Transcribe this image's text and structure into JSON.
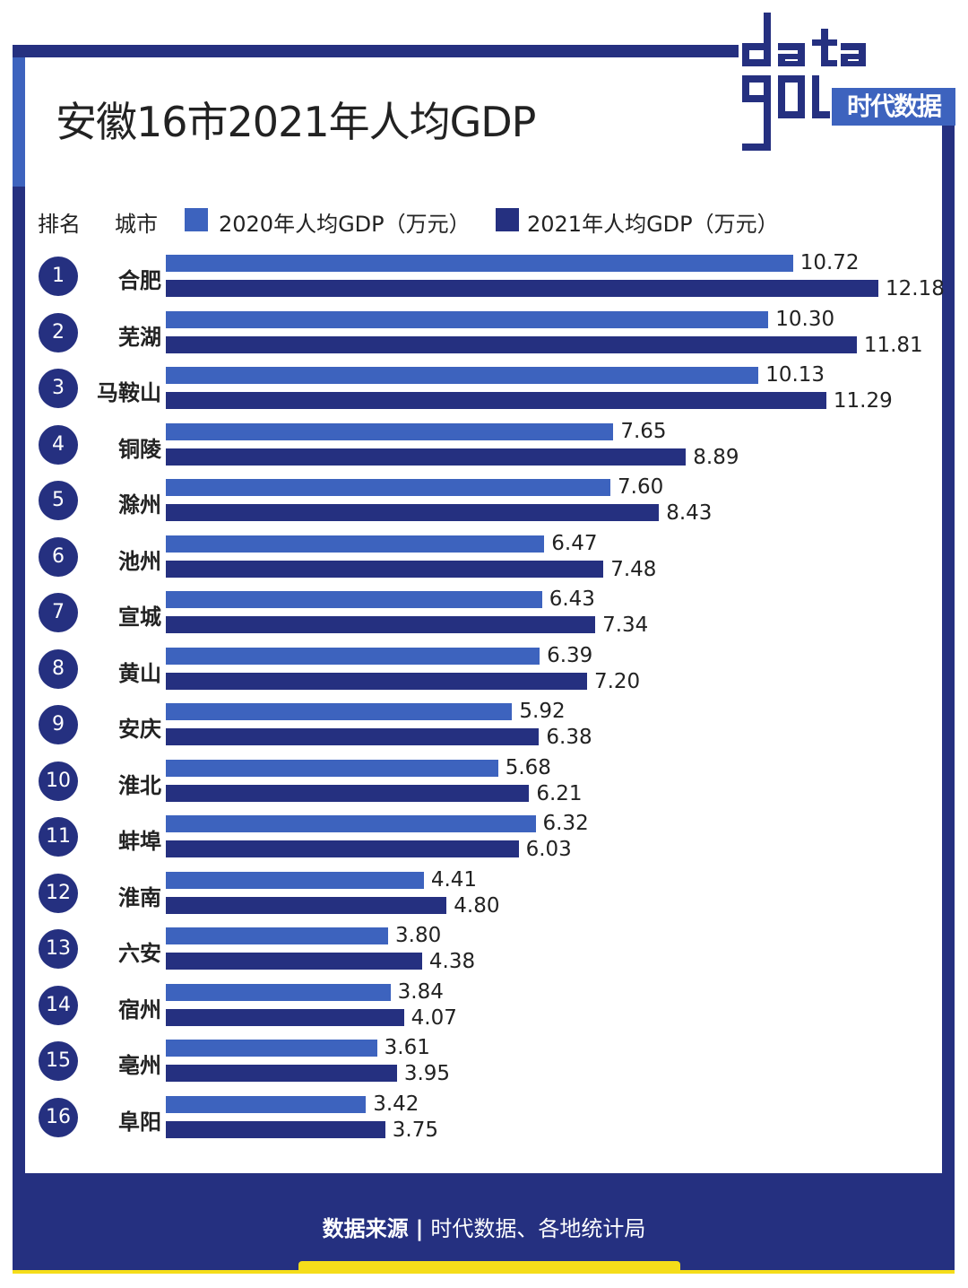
{
  "title": "安徽16市2021年人均GDP",
  "logo": {
    "text": "data",
    "subtitle": "时代数据"
  },
  "header": {
    "rank_label": "排名",
    "city_label": "城市",
    "legend_2020": "2020年人均GDP（万元）",
    "legend_2021": "2021年人均GDP（万元）"
  },
  "colors": {
    "bar_2020": "#3d63be",
    "bar_2021": "#253080",
    "frame": "#253080",
    "accent": "#f5dd1a"
  },
  "source": {
    "label": "数据来源",
    "text": "时代数据、各地统计局"
  },
  "chart_data": {
    "type": "bar",
    "orientation": "horizontal",
    "title": "安徽16市2021年人均GDP",
    "ranks": [
      "1",
      "2",
      "3",
      "4",
      "5",
      "6",
      "7",
      "8",
      "9",
      "10",
      "11",
      "12",
      "13",
      "14",
      "15",
      "16"
    ],
    "categories": [
      "合肥",
      "芜湖",
      "马鞍山",
      "铜陵",
      "滁州",
      "池州",
      "宣城",
      "黄山",
      "安庆",
      "淮北",
      "蚌埠",
      "淮南",
      "六安",
      "宿州",
      "亳州",
      "阜阳"
    ],
    "series": [
      {
        "name": "2020年人均GDP（万元）",
        "values": [
          10.72,
          10.3,
          10.13,
          7.65,
          7.6,
          6.47,
          6.43,
          6.39,
          5.92,
          5.68,
          6.32,
          4.41,
          3.8,
          3.84,
          3.61,
          3.42
        ]
      },
      {
        "name": "2021年人均GDP（万元）",
        "values": [
          12.18,
          11.81,
          11.29,
          8.89,
          8.43,
          7.48,
          7.34,
          7.2,
          6.38,
          6.21,
          6.03,
          4.8,
          4.38,
          4.07,
          3.95,
          3.75
        ]
      }
    ],
    "value_labels": {
      "2020": [
        "10.72",
        "10.30",
        "10.13",
        "7.65",
        "7.60",
        "6.47",
        "6.43",
        "6.39",
        "5.92",
        "5.68",
        "6.32",
        "4.41",
        "3.80",
        "3.84",
        "3.61",
        "3.42"
      ],
      "2021": [
        "12.18",
        "11.81",
        "11.29",
        "8.89",
        "8.43",
        "7.48",
        "7.34",
        "7.20",
        "6.38",
        "6.21",
        "6.03",
        "4.80",
        "4.38",
        "4.07",
        "3.95",
        "3.75"
      ]
    },
    "xlim": [
      0,
      12.18
    ],
    "xlabel": "",
    "ylabel": "",
    "legend": "top"
  }
}
